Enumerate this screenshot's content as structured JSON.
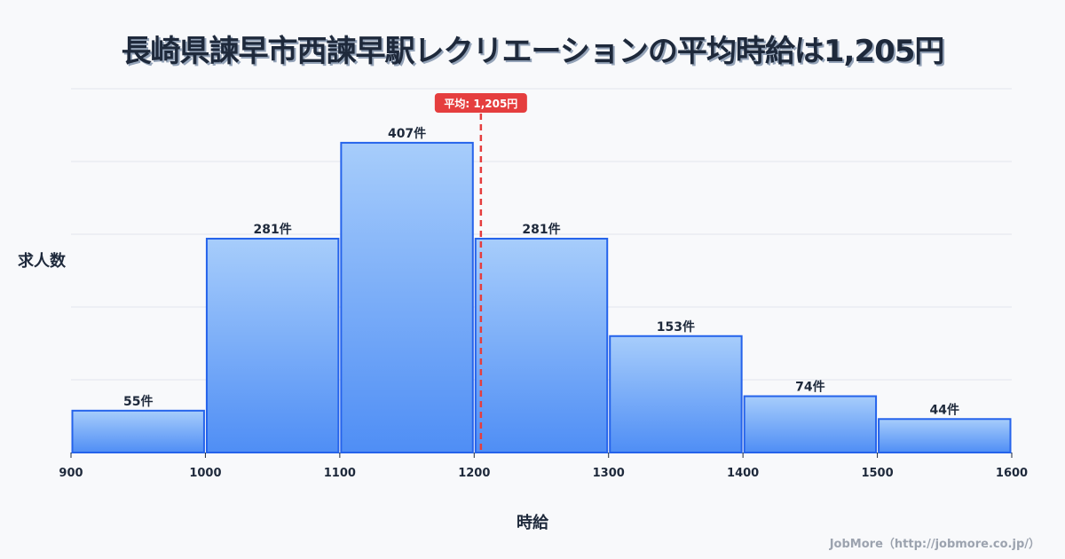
{
  "title": "長崎県諫早市西諫早駅レクリエーションの平均時給は1,205円",
  "ylabel": "求人数",
  "xlabel": "時給",
  "credit": "JobMore（http://jobmore.co.jp/）",
  "mean_badge": "平均: 1,205円",
  "colors": {
    "bar_top": "#a7cdfb",
    "bar_bottom": "#4f8ef5",
    "bar_stroke": "#2563eb",
    "mean_line": "#e53e3e",
    "grid": "#e2e5ec",
    "text": "#1e293b"
  },
  "chart_data": {
    "type": "bar",
    "title": "長崎県諫早市西諫早駅レクリエーションの平均時給は1,205円",
    "xlabel": "時給",
    "ylabel": "求人数",
    "bins": [
      {
        "from": 900,
        "to": 1000,
        "count": 55,
        "label": "55件"
      },
      {
        "from": 1000,
        "to": 1100,
        "count": 281,
        "label": "281件"
      },
      {
        "from": 1100,
        "to": 1200,
        "count": 407,
        "label": "407件"
      },
      {
        "from": 1200,
        "to": 1300,
        "count": 281,
        "label": "281件"
      },
      {
        "from": 1300,
        "to": 1400,
        "count": 153,
        "label": "153件"
      },
      {
        "from": 1400,
        "to": 1500,
        "count": 74,
        "label": "74件"
      },
      {
        "from": 1500,
        "to": 1600,
        "count": 44,
        "label": "44件"
      }
    ],
    "categories": [
      "900-1000",
      "1000-1100",
      "1100-1200",
      "1200-1300",
      "1300-1400",
      "1400-1500",
      "1500-1600"
    ],
    "values": [
      55,
      281,
      407,
      281,
      153,
      74,
      44
    ],
    "x_ticks": [
      900,
      1000,
      1100,
      1200,
      1300,
      1400,
      1500,
      1600
    ],
    "xlim": [
      900,
      1600
    ],
    "ylim": [
      0,
      478
    ],
    "mean": 1205,
    "mean_label": "平均: 1,205円",
    "grid": true,
    "legend": null
  }
}
